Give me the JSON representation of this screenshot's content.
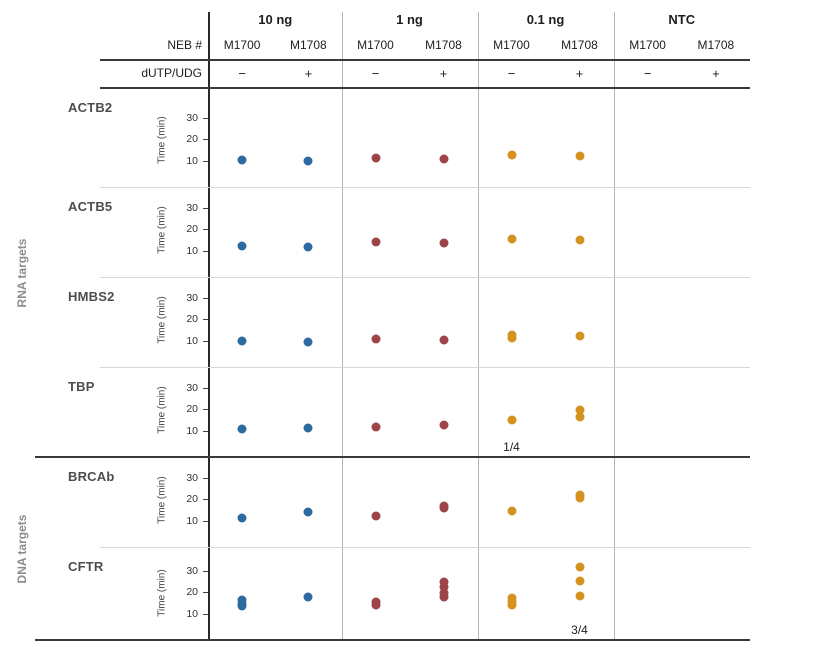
{
  "figure": {
    "neb_label": "NEB #",
    "dutp_label": "dUTP/UDG"
  },
  "chart_data": {
    "type": "scatter",
    "title": "",
    "ylabel": "Time (min)",
    "yticks": [
      10,
      20,
      30
    ],
    "ylim": [
      5,
      40
    ],
    "grid": false,
    "legend_position": "none",
    "column_groups": [
      {
        "label": "10 ng",
        "dot_color": "#2d6a9f"
      },
      {
        "label": "1 ng",
        "dot_color": "#9e4449"
      },
      {
        "label": "0.1 ng",
        "dot_color": "#d6921f"
      },
      {
        "label": "NTC",
        "dot_color": "#999999"
      }
    ],
    "subcolumns": [
      {
        "neb": "M1700",
        "dutp": "−"
      },
      {
        "neb": "M1708",
        "dutp": "+"
      }
    ],
    "columns_order": [
      "10 ng M1700 (−)",
      "10 ng M1708 (+)",
      "1 ng M1700 (−)",
      "1 ng M1708 (+)",
      "0.1 ng M1700 (−)",
      "0.1 ng M1708 (+)",
      "NTC M1700 (−)",
      "NTC M1708 (+)"
    ],
    "row_groups": [
      {
        "label": "RNA targets",
        "rows": [
          "ACTB2",
          "ACTB5",
          "HMBS2",
          "TBP"
        ]
      },
      {
        "label": "DNA targets",
        "rows": [
          "BRCAb",
          "CFTR"
        ]
      }
    ],
    "rows": [
      {
        "target": "ACTB2",
        "values_min": [
          [
            10.5
          ],
          [
            10
          ],
          [
            11.5
          ],
          [
            11
          ],
          [
            13
          ],
          [
            12.5
          ],
          [],
          []
        ],
        "annotations": []
      },
      {
        "target": "ACTB5",
        "values_min": [
          [
            12.5
          ],
          [
            12
          ],
          [
            14
          ],
          [
            13.5
          ],
          [
            15.5
          ],
          [
            15
          ],
          [],
          []
        ],
        "annotations": []
      },
      {
        "target": "HMBS2",
        "values_min": [
          [
            10
          ],
          [
            9.5
          ],
          [
            11
          ],
          [
            10.5
          ],
          [
            13,
            11.5
          ],
          [
            12.5
          ],
          [],
          []
        ],
        "annotations": []
      },
      {
        "target": "TBP",
        "values_min": [
          [
            11
          ],
          [
            11.5
          ],
          [
            12
          ],
          [
            13
          ],
          [
            15
          ],
          [
            20,
            16.5
          ],
          [],
          []
        ],
        "annotations": [
          {
            "col": 4,
            "text": "1/4"
          }
        ]
      },
      {
        "target": "BRCAb",
        "values_min": [
          [
            11.5
          ],
          [
            14
          ],
          [
            12.5
          ],
          [
            17,
            16
          ],
          [
            14.5
          ],
          [
            22,
            20.5
          ],
          [],
          []
        ],
        "annotations": []
      },
      {
        "target": "CFTR",
        "values_min": [
          [
            16.5,
            14.5,
            13.5
          ],
          [
            18
          ],
          [
            15.5,
            14
          ],
          [
            25,
            22.5,
            20,
            18
          ],
          [
            17.5,
            15.5,
            14
          ],
          [
            32,
            25.5,
            18.5
          ],
          [],
          []
        ],
        "annotations": [
          {
            "col": 5,
            "text": "3/4"
          }
        ]
      }
    ]
  }
}
